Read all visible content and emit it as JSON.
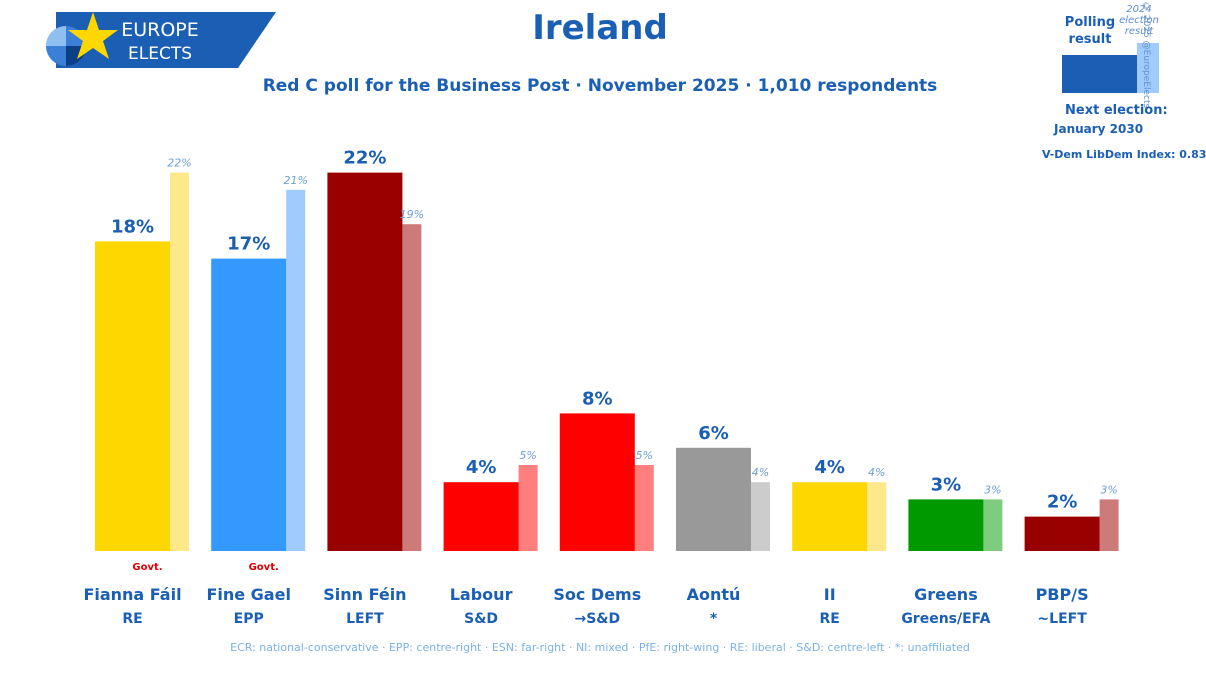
{
  "header": {
    "logo_line1": "EUROPE",
    "logo_line2": "ELECTS",
    "title": "Ireland",
    "subtitle": "Red C poll for the Business Post · November 2025 · 1,010 respondents"
  },
  "legend": {
    "polling_label": "Polling result",
    "previous_label": "2024 election result",
    "copyright": "© 2025 @EuropeElects",
    "next_election_label": "Next election:",
    "next_election_date": "January 2030",
    "vdem": "V-Dem LibDem Index: 0.83"
  },
  "colors": {
    "brand": "#1a5fb4",
    "govt_text": "#e00000"
  },
  "chart_data": {
    "type": "bar",
    "title": "Ireland",
    "ylim": [
      0,
      25
    ],
    "gov_marker": "Govt.",
    "series": [
      {
        "name": "Polling result",
        "values": [
          18,
          17,
          22,
          4,
          8,
          6,
          4,
          3,
          2
        ]
      },
      {
        "name": "2024 election result",
        "values": [
          22,
          21,
          19,
          5,
          5,
          4,
          4,
          3,
          3
        ]
      }
    ],
    "parties": [
      {
        "name": "Fianna Fáil",
        "group": "RE",
        "poll": 18,
        "prev": 22,
        "gov": true,
        "color": "#ffd700",
        "prev_color": "#fde98a"
      },
      {
        "name": "Fine Gael",
        "group": "EPP",
        "poll": 17,
        "prev": 21,
        "gov": true,
        "color": "#3399ff",
        "prev_color": "#9fcbff"
      },
      {
        "name": "Sinn Féin",
        "group": "LEFT",
        "poll": 22,
        "prev": 19,
        "gov": false,
        "color": "#990000",
        "prev_color": "#cc7a7a"
      },
      {
        "name": "Labour",
        "group": "S&D",
        "poll": 4,
        "prev": 5,
        "gov": false,
        "color": "#ff0000",
        "prev_color": "#ff7f7f"
      },
      {
        "name": "Soc Dems",
        "group": "→S&D",
        "poll": 8,
        "prev": 5,
        "gov": false,
        "color": "#ff0000",
        "prev_color": "#ff7f7f"
      },
      {
        "name": "Aontú",
        "group": "*",
        "poll": 6,
        "prev": 4,
        "gov": false,
        "color": "#999999",
        "prev_color": "#cccccc"
      },
      {
        "name": "II",
        "group": "RE",
        "poll": 4,
        "prev": 4,
        "gov": false,
        "color": "#ffd700",
        "prev_color": "#fde98a"
      },
      {
        "name": "Greens",
        "group": "Greens/EFA",
        "poll": 3,
        "prev": 3,
        "gov": false,
        "color": "#009900",
        "prev_color": "#7fcc7f"
      },
      {
        "name": "PBP/S",
        "group": "~LEFT",
        "poll": 2,
        "prev": 3,
        "gov": false,
        "color": "#990000",
        "prev_color": "#cc7a7a"
      }
    ]
  },
  "footer": {
    "text": "ECR: national-conservative · EPP: centre-right · ESN: far-right · NI: mixed · PfE: right-wing · RE: liberal · S&D: centre-left · *: unaffiliated"
  }
}
